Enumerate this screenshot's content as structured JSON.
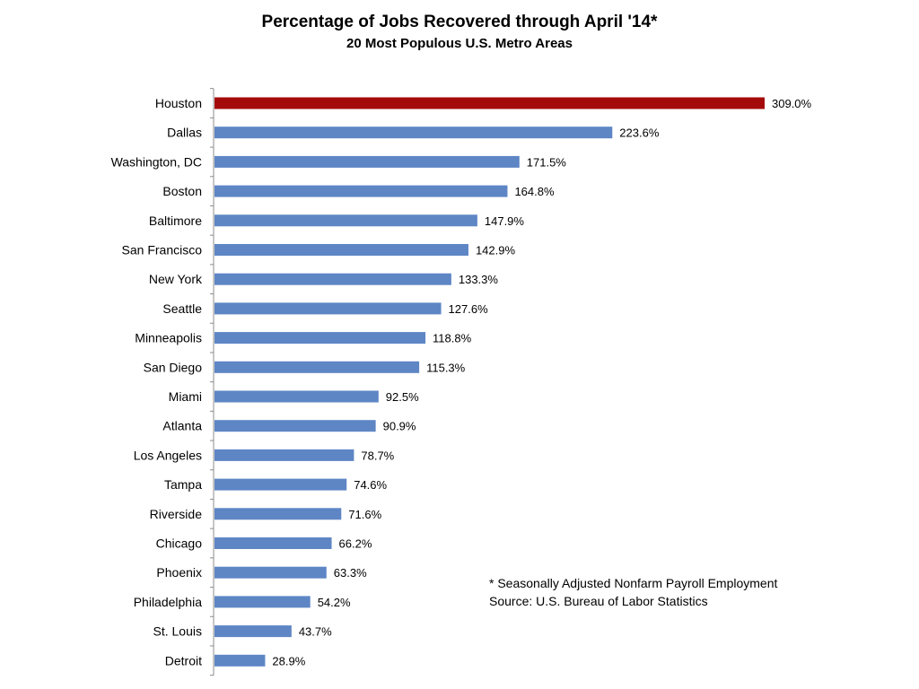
{
  "chart_data": {
    "type": "bar",
    "orientation": "horizontal",
    "title": "Percentage of Jobs Recovered through April '14*",
    "subtitle": "20 Most Populous U.S. Metro Areas",
    "categories": [
      "Houston",
      "Dallas",
      "Washington, DC",
      "Boston",
      "Baltimore",
      "San Francisco",
      "New York",
      "Seattle",
      "Minneapolis",
      "San Diego",
      "Miami",
      "Atlanta",
      "Los Angeles",
      "Tampa",
      "Riverside",
      "Chicago",
      "Phoenix",
      "Philadelphia",
      "St. Louis",
      "Detroit"
    ],
    "values": [
      309.0,
      223.6,
      171.5,
      164.8,
      147.9,
      142.9,
      133.3,
      127.6,
      118.8,
      115.3,
      92.5,
      90.9,
      78.7,
      74.6,
      71.6,
      66.2,
      63.3,
      54.2,
      43.7,
      28.9
    ],
    "value_labels": [
      "309.0%",
      "223.6%",
      "171.5%",
      "164.8%",
      "147.9%",
      "142.9%",
      "133.3%",
      "127.6%",
      "118.8%",
      "115.3%",
      "92.5%",
      "90.9%",
      "78.7%",
      "74.6%",
      "71.6%",
      "66.2%",
      "63.3%",
      "54.2%",
      "43.7%",
      "28.9%"
    ],
    "highlight_category": "Houston",
    "colors": {
      "highlight": "#a50a0a",
      "default": "#5e86c5",
      "axis": "#8c8c8c"
    },
    "xlim": [
      0,
      309
    ],
    "grid": false,
    "legend": "none"
  },
  "footnote": {
    "note": "* Seasonally Adjusted Nonfarm Payroll Employment",
    "source": "Source: U.S. Bureau of Labor Statistics"
  }
}
